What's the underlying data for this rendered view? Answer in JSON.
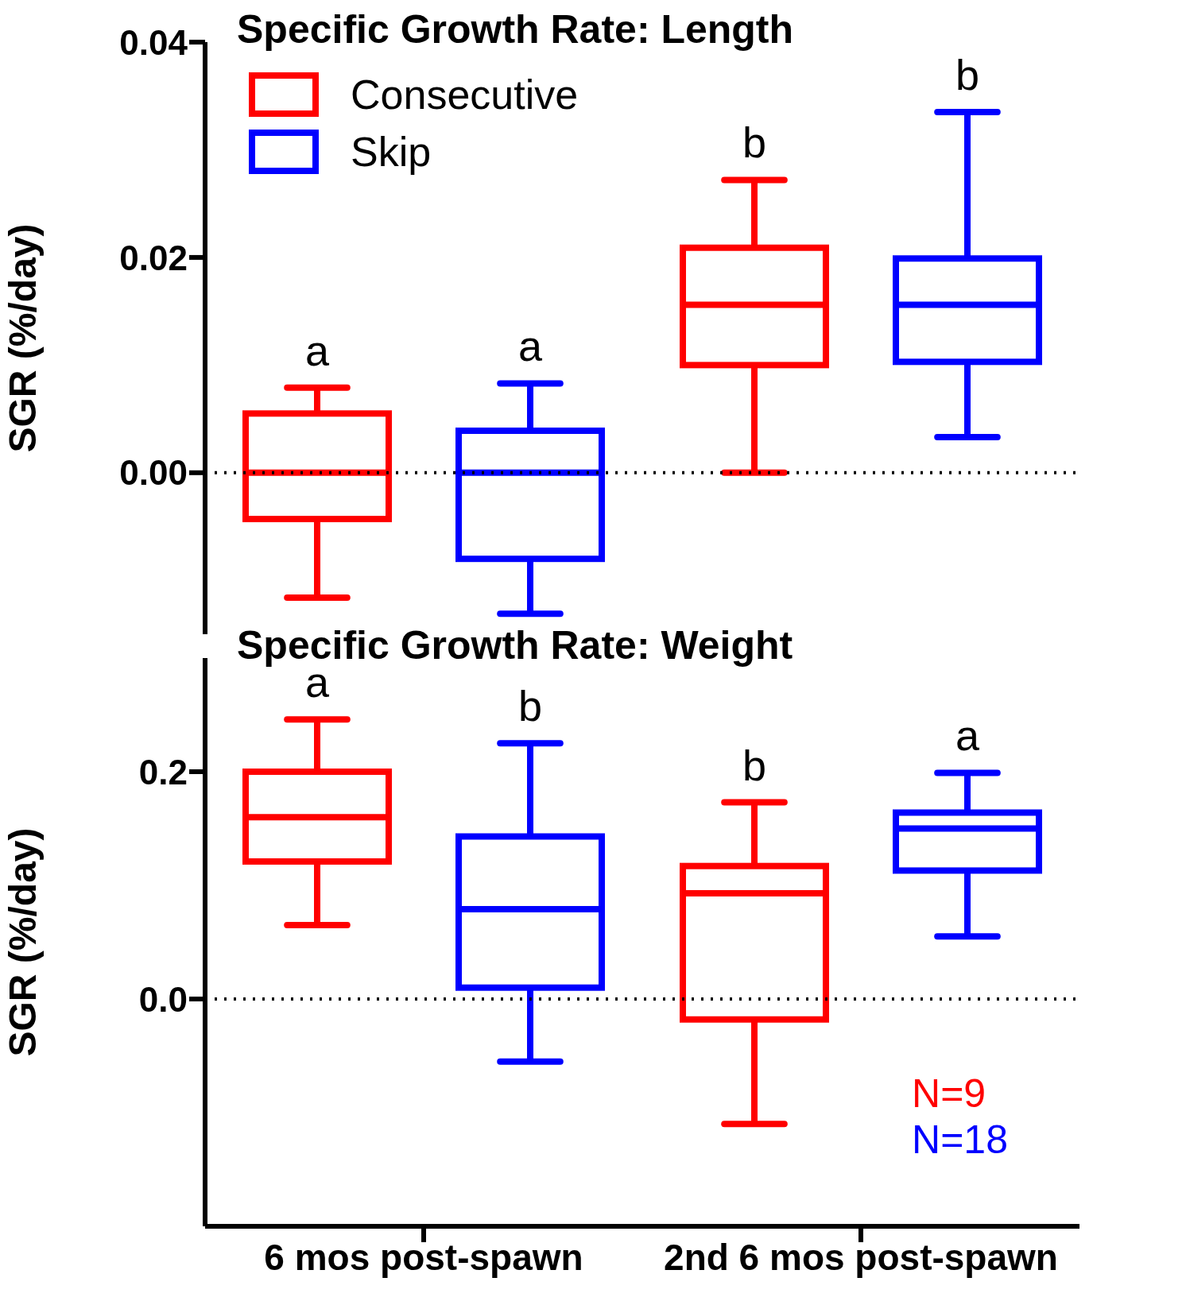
{
  "chart_data": [
    {
      "type": "box",
      "title": "Specific Growth Rate: Length",
      "ylabel": "SGR (%/day)",
      "ylim": [
        -0.015,
        0.04
      ],
      "yticks": [
        {
          "value": 0,
          "label": "0.00"
        },
        {
          "value": 0.02,
          "label": "0.02"
        },
        {
          "value": 0.04,
          "label": "0.04"
        }
      ],
      "tick_labels": "y",
      "legend": "top left",
      "ref_lines": [
        {
          "axis": "y",
          "value": 0,
          "line_style": "dotted",
          "color": "#000000"
        }
      ],
      "series": [
        {
          "name": "Consecutive",
          "color": "#ff0000",
          "boxes": [
            {
              "low": -0.0116,
              "q1": -0.0043,
              "median": 0,
              "q3": 0.0055,
              "high": 0.0079
            },
            {
              "low": 0,
              "q1": 0.01,
              "median": 0.0156,
              "q3": 0.0209,
              "high": 0.0272
            }
          ],
          "value_labels": [
            "a",
            "b"
          ]
        },
        {
          "name": "Skip",
          "color": "#0000ff",
          "boxes": [
            {
              "low": -0.0131,
              "q1": -0.008,
              "median": 0,
              "q3": 0.0039,
              "high": 0.0083
            },
            {
              "low": 0.0033,
              "q1": 0.0103,
              "median": 0.0156,
              "q3": 0.0199,
              "high": 0.0335
            }
          ],
          "value_labels": [
            "a",
            "b"
          ]
        }
      ]
    },
    {
      "type": "box",
      "title": "Specific Growth Rate: Weight",
      "ylabel": "SGR (%/day)",
      "categories": [
        "6 mos post-spawn",
        "2nd 6 mos post-spawn"
      ],
      "ylim": [
        -0.2,
        0.3
      ],
      "yticks": [
        {
          "value": 0,
          "label": "0.0"
        },
        0.2
      ],
      "ref_lines": [
        {
          "axis": "y",
          "value": 0,
          "line_style": "dotted",
          "color": "#000000"
        }
      ],
      "annotations": [
        "N=9",
        "N=18"
      ],
      "series": [
        {
          "color": "#ff0000",
          "boxes": [
            {
              "low": 0.065,
              "q1": 0.121,
              "median": 0.16,
              "q3": 0.2,
              "high": 0.246
            },
            {
              "low": -0.11,
              "q1": -0.018,
              "median": 0.093,
              "q3": 0.117,
              "high": 0.173
            }
          ],
          "value_labels": [
            "a",
            "b"
          ]
        },
        {
          "color": "#0000ff",
          "boxes": [
            {
              "low": -0.055,
              "q1": 0.01,
              "median": 0.079,
              "q3": 0.143,
              "high": 0.225
            },
            {
              "low": 0.055,
              "q1": 0.113,
              "median": 0.15,
              "q3": 0.164,
              "high": 0.199
            }
          ],
          "value_labels": [
            "b",
            "a"
          ]
        }
      ]
    }
  ]
}
